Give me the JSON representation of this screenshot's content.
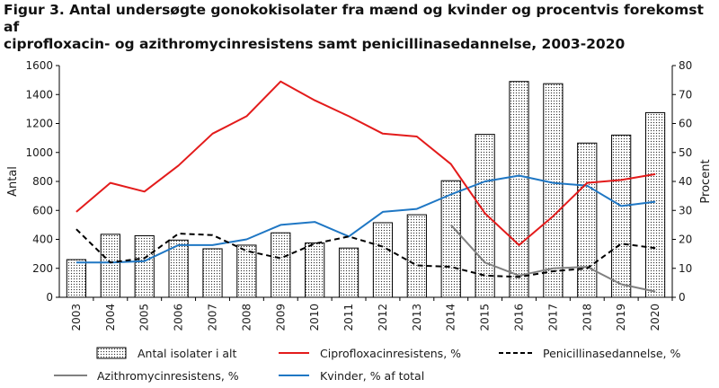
{
  "title_line1": "Figur 3. Antal undersøgte gonokokisolater fra mænd og kvinder og procentvis forekomst af",
  "title_line2": "ciprofloxacin- og azithromycinresistens samt penicillinasedannelse, 2003-2020",
  "chart_data": {
    "type": "bar",
    "categories": [
      "2003",
      "2004",
      "2005",
      "2006",
      "2007",
      "2008",
      "2009",
      "2010",
      "2011",
      "2012",
      "2013",
      "2014",
      "2015",
      "2016",
      "2017",
      "2018",
      "2019",
      "2020"
    ],
    "ylabel_left": "Antal",
    "ylabel_right": "Procent",
    "ylim_left": [
      0,
      1600
    ],
    "ylim_right": [
      0,
      80
    ],
    "yticks_left": [
      "0",
      "200",
      "400",
      "600",
      "800",
      "1000",
      "1200",
      "1400",
      "1600"
    ],
    "yticks_right": [
      "0",
      "10",
      "20",
      "30",
      "40",
      "50",
      "60",
      "70",
      "80"
    ],
    "bars": {
      "name": "Antal isolater i alt",
      "axis": "left",
      "values": [
        260,
        435,
        425,
        395,
        335,
        360,
        445,
        375,
        340,
        515,
        570,
        805,
        1125,
        1490,
        1475,
        1065,
        1120,
        1275
      ]
    },
    "series": [
      {
        "name": "Ciprofloxacinresistens, %",
        "axis": "right",
        "color": "#e31b1b",
        "style": "solid",
        "values": [
          29.5,
          39.5,
          36.5,
          45.5,
          56.5,
          62.5,
          74.5,
          68,
          62.5,
          56.5,
          55.5,
          46,
          29,
          18,
          28,
          39.5,
          40.5,
          42.5
        ]
      },
      {
        "name": "Penicillinasedannelse, %",
        "axis": "right",
        "color": "#000000",
        "style": "dashed",
        "values": [
          23.5,
          12,
          13.5,
          22,
          21.5,
          16,
          13.5,
          18.5,
          21,
          17.5,
          11,
          10.5,
          7.5,
          7,
          9,
          10,
          18.5,
          17
        ]
      },
      {
        "name": "Azithromycinresistens, %",
        "axis": "right",
        "color": "#808080",
        "style": "solid",
        "start_index": 11,
        "values": [
          null,
          null,
          null,
          null,
          null,
          null,
          null,
          null,
          null,
          null,
          null,
          25,
          12,
          7.5,
          10,
          10.5,
          4.5,
          2
        ]
      },
      {
        "name": "Kvinder, % af total",
        "axis": "right",
        "color": "#1f77c4",
        "style": "solid",
        "values": [
          12,
          12,
          12.5,
          18,
          18,
          20,
          25,
          26,
          21,
          29.5,
          30.5,
          35.5,
          40,
          42,
          39.5,
          38.5,
          31.5,
          33
        ]
      }
    ],
    "legend_position": "bottom"
  },
  "legend": {
    "bars_label": "Antal isolater i alt",
    "cipro_label": "Ciprofloxacinresistens, %",
    "penic_label": "Penicillinasedannelse, %",
    "azithro_label": "Azithromycinresistens, %",
    "kvinder_label": "Kvinder, % af total"
  }
}
